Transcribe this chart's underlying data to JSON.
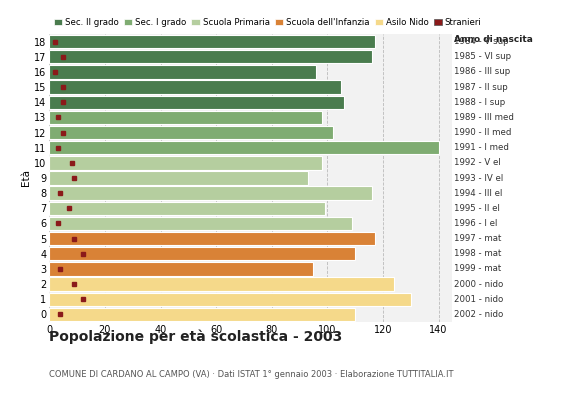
{
  "ages": [
    18,
    17,
    16,
    15,
    14,
    13,
    12,
    11,
    10,
    9,
    8,
    7,
    6,
    5,
    4,
    3,
    2,
    1,
    0
  ],
  "bar_values": [
    117,
    116,
    96,
    105,
    106,
    98,
    102,
    140,
    98,
    93,
    116,
    99,
    109,
    117,
    110,
    95,
    124,
    130,
    110
  ],
  "stranieri_values": [
    2,
    5,
    2,
    5,
    5,
    3,
    5,
    3,
    8,
    9,
    4,
    7,
    3,
    9,
    12,
    4,
    9,
    12,
    4
  ],
  "right_labels": [
    "1984 - V sup",
    "1985 - VI sup",
    "1986 - III sup",
    "1987 - II sup",
    "1988 - I sup",
    "1989 - III med",
    "1990 - II med",
    "1991 - I med",
    "1992 - V el",
    "1993 - IV el",
    "1994 - III el",
    "1995 - II el",
    "1996 - I el",
    "1997 - mat",
    "1998 - mat",
    "1999 - mat",
    "2000 - nido",
    "2001 - nido",
    "2002 - nido"
  ],
  "bar_colors": {
    "sec2": "#4a7c4e",
    "sec1": "#7fac72",
    "primaria": "#b5ce9f",
    "infanzia": "#d98236",
    "nido": "#f5d98a",
    "stranieri": "#8b1a1a"
  },
  "age_school": {
    "sec2": [
      14,
      15,
      16,
      17,
      18
    ],
    "sec1": [
      11,
      12,
      13
    ],
    "primaria": [
      6,
      7,
      8,
      9,
      10
    ],
    "infanzia": [
      3,
      4,
      5
    ],
    "nido": [
      0,
      1,
      2
    ]
  },
  "legend_labels": [
    "Sec. II grado",
    "Sec. I grado",
    "Scuola Primaria",
    "Scuola dell'Infanzia",
    "Asilo Nido",
    "Stranieri"
  ],
  "legend_colors": [
    "#4a7c4e",
    "#7fac72",
    "#b5ce9f",
    "#d98236",
    "#f5d98a",
    "#8b1a1a"
  ],
  "title": "Popolazione per età scolastica - 2003",
  "subtitle": "COMUNE DI CARDANO AL CAMPO (VA) · Dati ISTAT 1° gennaio 2003 · Elaborazione TUTTITALIA.IT",
  "xlabel_age": "Età",
  "xlabel_anno": "Anno di nascita",
  "xlim": [
    0,
    145
  ],
  "xticks": [
    0,
    20,
    40,
    60,
    80,
    100,
    120,
    140
  ],
  "plot_bg": "#f2f2f2"
}
